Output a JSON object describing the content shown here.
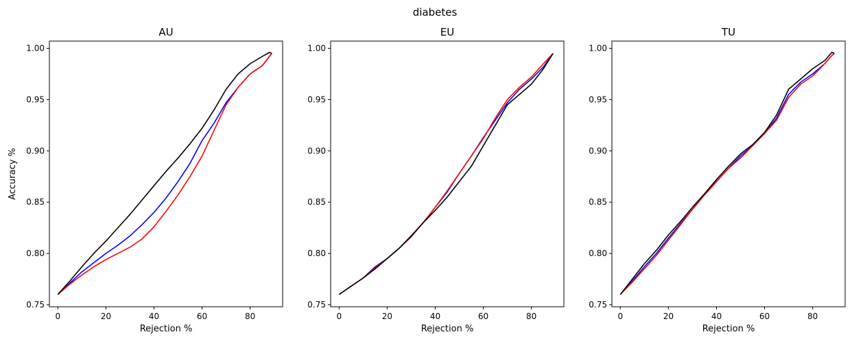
{
  "figure": {
    "suptitle": "diabetes"
  },
  "chart_data": [
    {
      "type": "line",
      "title": "AU",
      "xlabel": "Rejection %",
      "ylabel": "Accuracy %",
      "xlim": [
        -3.5,
        93.5
      ],
      "ylim": [
        0.748,
        1.007
      ],
      "xticks": [
        0,
        20,
        40,
        60,
        80
      ],
      "xtick_labels": [
        "0",
        "20",
        "40",
        "60",
        "80"
      ],
      "yticks": [
        0.75,
        0.8,
        0.85,
        0.9,
        0.95,
        1.0
      ],
      "ytick_labels": [
        "0.75",
        "0.80",
        "0.85",
        "0.90",
        "0.95",
        "1.00"
      ],
      "grid": false,
      "legend": "none",
      "series": [
        {
          "color": "#0000ff",
          "x": [
            0,
            5,
            10,
            15,
            20,
            25,
            30,
            35,
            40,
            45,
            50,
            55,
            60,
            65,
            70,
            75,
            80,
            85,
            88,
            89
          ],
          "y": [
            0.76,
            0.771,
            0.782,
            0.791,
            0.8,
            0.808,
            0.817,
            0.828,
            0.84,
            0.854,
            0.87,
            0.888,
            0.91,
            0.927,
            0.947,
            0.962,
            0.975,
            0.983,
            0.992,
            0.995
          ]
        },
        {
          "color": "#ff0000",
          "x": [
            0,
            5,
            10,
            15,
            20,
            25,
            30,
            35,
            40,
            45,
            50,
            55,
            60,
            65,
            70,
            75,
            80,
            85,
            88,
            89
          ],
          "y": [
            0.76,
            0.77,
            0.779,
            0.787,
            0.794,
            0.8,
            0.806,
            0.814,
            0.826,
            0.841,
            0.857,
            0.875,
            0.895,
            0.92,
            0.945,
            0.962,
            0.975,
            0.983,
            0.992,
            0.995
          ]
        },
        {
          "color": "#000000",
          "x": [
            0,
            5,
            10,
            15,
            20,
            25,
            30,
            35,
            40,
            45,
            50,
            55,
            60,
            65,
            70,
            75,
            80,
            85,
            88,
            89
          ],
          "y": [
            0.76,
            0.773,
            0.787,
            0.8,
            0.812,
            0.825,
            0.838,
            0.852,
            0.866,
            0.88,
            0.893,
            0.907,
            0.922,
            0.94,
            0.96,
            0.975,
            0.985,
            0.992,
            0.996,
            0.995
          ]
        }
      ]
    },
    {
      "type": "line",
      "title": "EU",
      "xlabel": "Rejection %",
      "ylabel": "",
      "xlim": [
        -3.5,
        93.5
      ],
      "ylim": [
        0.748,
        1.007
      ],
      "xticks": [
        0,
        20,
        40,
        60,
        80
      ],
      "xtick_labels": [
        "0",
        "20",
        "40",
        "60",
        "80"
      ],
      "yticks": [
        0.75,
        0.8,
        0.85,
        0.9,
        0.95,
        1.0
      ],
      "ytick_labels": [
        "0.75",
        "0.80",
        "0.85",
        "0.90",
        "0.95",
        "1.00"
      ],
      "grid": false,
      "legend": "none",
      "series": [
        {
          "color": "#0000ff",
          "x": [
            0,
            5,
            10,
            15,
            20,
            25,
            30,
            35,
            40,
            45,
            50,
            55,
            60,
            65,
            70,
            75,
            80,
            85,
            89
          ],
          "y": [
            0.76,
            0.768,
            0.776,
            0.787,
            0.795,
            0.805,
            0.817,
            0.83,
            0.845,
            0.86,
            0.878,
            0.895,
            0.913,
            0.93,
            0.947,
            0.96,
            0.97,
            0.982,
            0.995
          ]
        },
        {
          "color": "#ff0000",
          "x": [
            0,
            5,
            10,
            15,
            20,
            25,
            30,
            35,
            40,
            45,
            50,
            55,
            60,
            65,
            70,
            75,
            80,
            85,
            89
          ],
          "y": [
            0.76,
            0.768,
            0.776,
            0.786,
            0.795,
            0.805,
            0.816,
            0.83,
            0.845,
            0.861,
            0.878,
            0.895,
            0.912,
            0.932,
            0.95,
            0.962,
            0.972,
            0.985,
            0.995
          ]
        },
        {
          "color": "#000000",
          "x": [
            0,
            5,
            10,
            15,
            20,
            25,
            30,
            35,
            40,
            45,
            50,
            55,
            60,
            65,
            70,
            75,
            80,
            85,
            89
          ],
          "y": [
            0.76,
            0.768,
            0.776,
            0.785,
            0.795,
            0.805,
            0.817,
            0.83,
            0.842,
            0.855,
            0.87,
            0.885,
            0.905,
            0.925,
            0.945,
            0.955,
            0.965,
            0.98,
            0.995
          ]
        }
      ]
    },
    {
      "type": "line",
      "title": "TU",
      "xlabel": "Rejection %",
      "ylabel": "",
      "xlim": [
        -3.5,
        93.5
      ],
      "ylim": [
        0.748,
        1.007
      ],
      "xticks": [
        0,
        20,
        40,
        60,
        80
      ],
      "xtick_labels": [
        "0",
        "20",
        "40",
        "60",
        "80"
      ],
      "yticks": [
        0.75,
        0.8,
        0.85,
        0.9,
        0.95,
        1.0
      ],
      "ytick_labels": [
        "0.75",
        "0.80",
        "0.85",
        "0.90",
        "0.95",
        "1.00"
      ],
      "grid": false,
      "legend": "none",
      "series": [
        {
          "color": "#0000ff",
          "x": [
            0,
            5,
            10,
            15,
            20,
            25,
            30,
            35,
            40,
            45,
            50,
            55,
            60,
            65,
            70,
            75,
            80,
            85,
            88,
            89
          ],
          "y": [
            0.76,
            0.773,
            0.787,
            0.8,
            0.815,
            0.829,
            0.843,
            0.857,
            0.87,
            0.883,
            0.895,
            0.905,
            0.917,
            0.932,
            0.955,
            0.967,
            0.975,
            0.985,
            0.993,
            0.995
          ]
        },
        {
          "color": "#ff0000",
          "x": [
            0,
            5,
            10,
            15,
            20,
            25,
            30,
            35,
            40,
            45,
            50,
            55,
            60,
            65,
            70,
            75,
            80,
            85,
            88,
            89
          ],
          "y": [
            0.76,
            0.772,
            0.785,
            0.798,
            0.813,
            0.828,
            0.843,
            0.857,
            0.87,
            0.883,
            0.893,
            0.905,
            0.917,
            0.93,
            0.952,
            0.965,
            0.973,
            0.985,
            0.993,
            0.995
          ]
        },
        {
          "color": "#000000",
          "x": [
            0,
            5,
            10,
            15,
            20,
            25,
            30,
            35,
            40,
            45,
            50,
            55,
            60,
            65,
            70,
            75,
            80,
            85,
            88,
            89
          ],
          "y": [
            0.76,
            0.775,
            0.79,
            0.803,
            0.818,
            0.831,
            0.845,
            0.858,
            0.872,
            0.885,
            0.897,
            0.906,
            0.918,
            0.935,
            0.96,
            0.97,
            0.98,
            0.988,
            0.996,
            0.995
          ]
        }
      ]
    }
  ]
}
